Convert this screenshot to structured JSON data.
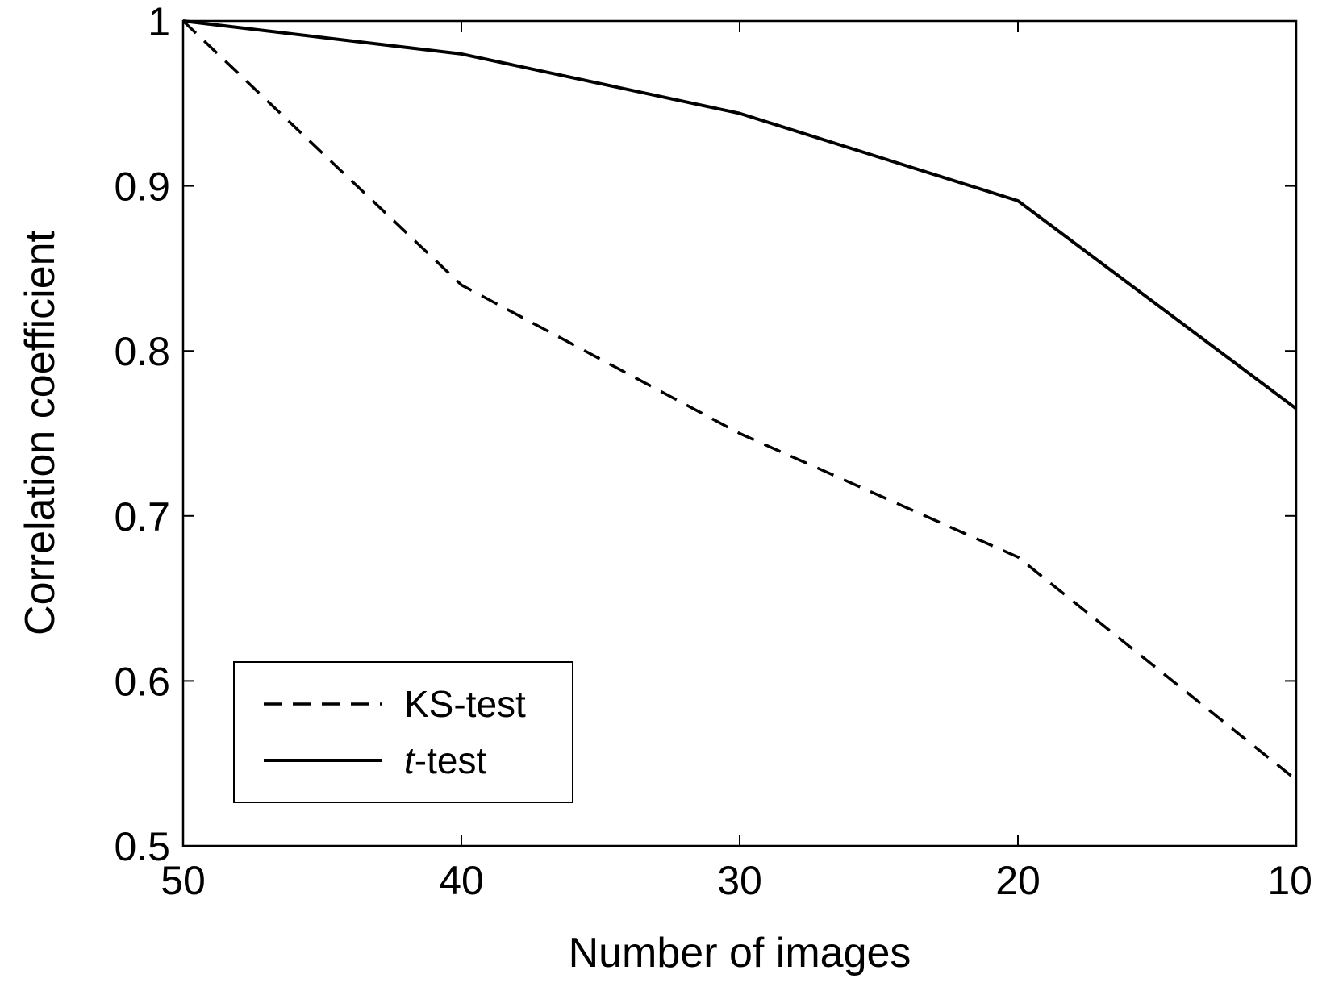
{
  "chart_data": {
    "type": "line",
    "title": "",
    "xlabel": "Number of images",
    "ylabel": "Correlation coefficient",
    "x": [
      50,
      40,
      30,
      20,
      10
    ],
    "xlim": [
      50,
      10
    ],
    "ylim": [
      0.5,
      1.0
    ],
    "x_reversed": true,
    "x_ticks": [
      "50",
      "40",
      "30",
      "20",
      "10"
    ],
    "y_ticks": [
      "0.5",
      "0.6",
      "0.7",
      "0.8",
      "0.9",
      "1"
    ],
    "grid": false,
    "legend_position": "lower-left",
    "series": [
      {
        "name": "KS-test",
        "style": "dashed",
        "color": "#000000",
        "values": [
          1.0,
          0.84,
          0.75,
          0.675,
          0.54
        ]
      },
      {
        "name": "t-test",
        "name_prefix_italic": "t",
        "name_suffix": "-test",
        "style": "solid",
        "color": "#000000",
        "values": [
          1.0,
          0.98,
          0.944,
          0.891,
          0.765
        ]
      }
    ]
  }
}
